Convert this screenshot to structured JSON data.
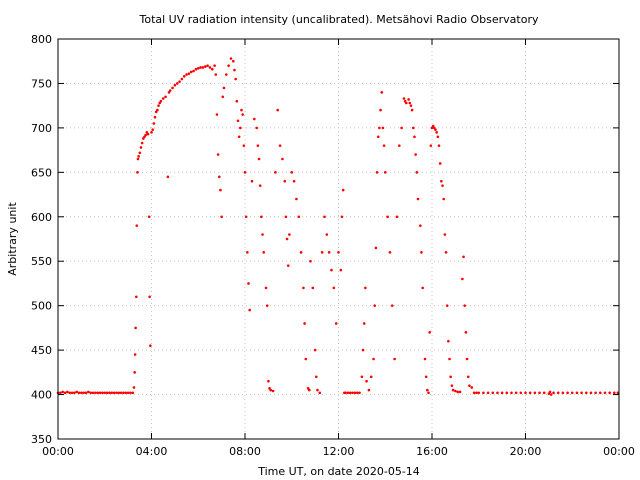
{
  "chart_data": {
    "type": "scatter",
    "title": "Total UV radiation intensity (uncalibrated). Metsähovi Radio Observatory",
    "xlabel": "Time UT, on date 2020-05-14",
    "ylabel": "Arbitrary unit",
    "xlim": [
      0,
      24
    ],
    "ylim": [
      350,
      800
    ],
    "x_ticks": [
      0,
      4,
      8,
      12,
      16,
      20,
      24
    ],
    "x_tick_labels": [
      "00:00",
      "04:00",
      "08:00",
      "12:00",
      "16:00",
      "20:00",
      "00:00"
    ],
    "y_ticks": [
      350,
      400,
      450,
      500,
      550,
      600,
      650,
      700,
      750,
      800
    ],
    "y_tick_labels": [
      "350",
      "400",
      "450",
      "500",
      "550",
      "600",
      "650",
      "700",
      "750",
      "800"
    ],
    "grid": true,
    "series_color": "#ff0000",
    "series": [
      {
        "x_unit": "hours UT",
        "points": [
          [
            0.0,
            402
          ],
          [
            0.1,
            402
          ],
          [
            0.2,
            403
          ],
          [
            0.3,
            402
          ],
          [
            0.4,
            403
          ],
          [
            0.5,
            402
          ],
          [
            0.6,
            402
          ],
          [
            0.7,
            402
          ],
          [
            0.8,
            403
          ],
          [
            0.9,
            402
          ],
          [
            1.0,
            402
          ],
          [
            1.1,
            402
          ],
          [
            1.2,
            402
          ],
          [
            1.3,
            403
          ],
          [
            1.4,
            402
          ],
          [
            1.5,
            402
          ],
          [
            1.6,
            402
          ],
          [
            1.7,
            402
          ],
          [
            1.8,
            402
          ],
          [
            1.9,
            402
          ],
          [
            2.0,
            402
          ],
          [
            2.1,
            402
          ],
          [
            2.2,
            402
          ],
          [
            2.3,
            402
          ],
          [
            2.4,
            402
          ],
          [
            2.5,
            402
          ],
          [
            2.6,
            402
          ],
          [
            2.7,
            402
          ],
          [
            2.8,
            402
          ],
          [
            2.9,
            402
          ],
          [
            3.0,
            402
          ],
          [
            3.1,
            402
          ],
          [
            3.2,
            402
          ],
          [
            3.25,
            408
          ],
          [
            3.28,
            425
          ],
          [
            3.3,
            445
          ],
          [
            3.32,
            475
          ],
          [
            3.35,
            510
          ],
          [
            3.37,
            590
          ],
          [
            3.4,
            650
          ],
          [
            3.42,
            665
          ],
          [
            3.45,
            668
          ],
          [
            3.5,
            672
          ],
          [
            3.55,
            678
          ],
          [
            3.6,
            683
          ],
          [
            3.65,
            688
          ],
          [
            3.7,
            690
          ],
          [
            3.75,
            692
          ],
          [
            3.8,
            695
          ],
          [
            3.85,
            693
          ],
          [
            3.9,
            600
          ],
          [
            3.92,
            510
          ],
          [
            3.95,
            455
          ],
          [
            4.0,
            695
          ],
          [
            4.05,
            698
          ],
          [
            4.1,
            705
          ],
          [
            4.15,
            712
          ],
          [
            4.2,
            718
          ],
          [
            4.25,
            720
          ],
          [
            4.3,
            725
          ],
          [
            4.35,
            728
          ],
          [
            4.4,
            730
          ],
          [
            4.5,
            733
          ],
          [
            4.6,
            735
          ],
          [
            4.7,
            645
          ],
          [
            4.75,
            740
          ],
          [
            4.8,
            742
          ],
          [
            4.9,
            745
          ],
          [
            5.0,
            748
          ],
          [
            5.1,
            750
          ],
          [
            5.2,
            752
          ],
          [
            5.3,
            755
          ],
          [
            5.4,
            758
          ],
          [
            5.5,
            760
          ],
          [
            5.6,
            761
          ],
          [
            5.7,
            763
          ],
          [
            5.8,
            764
          ],
          [
            5.9,
            766
          ],
          [
            6.0,
            767
          ],
          [
            6.1,
            768
          ],
          [
            6.2,
            768
          ],
          [
            6.3,
            769
          ],
          [
            6.4,
            770
          ],
          [
            6.5,
            768
          ],
          [
            6.6,
            766
          ],
          [
            6.7,
            770
          ],
          [
            6.75,
            760
          ],
          [
            6.8,
            715
          ],
          [
            6.85,
            670
          ],
          [
            6.9,
            645
          ],
          [
            6.95,
            630
          ],
          [
            7.0,
            600
          ],
          [
            7.05,
            735
          ],
          [
            7.1,
            745
          ],
          [
            7.2,
            760
          ],
          [
            7.3,
            770
          ],
          [
            7.4,
            778
          ],
          [
            7.5,
            775
          ],
          [
            7.55,
            765
          ],
          [
            7.6,
            755
          ],
          [
            7.65,
            730
          ],
          [
            7.7,
            708
          ],
          [
            7.75,
            690
          ],
          [
            7.8,
            700
          ],
          [
            7.85,
            720
          ],
          [
            7.9,
            715
          ],
          [
            7.95,
            680
          ],
          [
            8.0,
            650
          ],
          [
            8.05,
            600
          ],
          [
            8.1,
            560
          ],
          [
            8.15,
            525
          ],
          [
            8.2,
            495
          ],
          [
            8.3,
            640
          ],
          [
            8.4,
            710
          ],
          [
            8.5,
            700
          ],
          [
            8.55,
            680
          ],
          [
            8.6,
            665
          ],
          [
            8.65,
            635
          ],
          [
            8.7,
            600
          ],
          [
            8.75,
            580
          ],
          [
            8.8,
            560
          ],
          [
            8.9,
            520
          ],
          [
            8.95,
            500
          ],
          [
            9.0,
            415
          ],
          [
            9.05,
            407
          ],
          [
            9.1,
            405
          ],
          [
            9.2,
            404
          ],
          [
            9.3,
            650
          ],
          [
            9.4,
            720
          ],
          [
            9.5,
            680
          ],
          [
            9.6,
            665
          ],
          [
            9.7,
            640
          ],
          [
            9.75,
            600
          ],
          [
            9.8,
            575
          ],
          [
            9.85,
            545
          ],
          [
            9.9,
            580
          ],
          [
            10.0,
            650
          ],
          [
            10.1,
            640
          ],
          [
            10.2,
            620
          ],
          [
            10.3,
            600
          ],
          [
            10.4,
            560
          ],
          [
            10.5,
            520
          ],
          [
            10.55,
            480
          ],
          [
            10.6,
            440
          ],
          [
            10.7,
            407
          ],
          [
            10.75,
            405
          ],
          [
            10.8,
            550
          ],
          [
            10.9,
            520
          ],
          [
            11.0,
            450
          ],
          [
            11.05,
            420
          ],
          [
            11.1,
            405
          ],
          [
            11.2,
            402
          ],
          [
            11.3,
            560
          ],
          [
            11.4,
            600
          ],
          [
            11.5,
            580
          ],
          [
            11.6,
            560
          ],
          [
            11.7,
            540
          ],
          [
            11.8,
            520
          ],
          [
            11.9,
            480
          ],
          [
            12.0,
            560
          ],
          [
            12.1,
            540
          ],
          [
            12.15,
            600
          ],
          [
            12.2,
            630
          ],
          [
            12.25,
            402
          ],
          [
            12.3,
            402
          ],
          [
            12.4,
            402
          ],
          [
            12.5,
            402
          ],
          [
            12.6,
            402
          ],
          [
            12.7,
            402
          ],
          [
            12.8,
            402
          ],
          [
            12.9,
            402
          ],
          [
            13.0,
            420
          ],
          [
            13.05,
            450
          ],
          [
            13.1,
            480
          ],
          [
            13.15,
            520
          ],
          [
            13.2,
            415
          ],
          [
            13.3,
            405
          ],
          [
            13.4,
            420
          ],
          [
            13.5,
            440
          ],
          [
            13.55,
            500
          ],
          [
            13.6,
            565
          ],
          [
            13.65,
            650
          ],
          [
            13.7,
            690
          ],
          [
            13.75,
            700
          ],
          [
            13.8,
            720
          ],
          [
            13.85,
            740
          ],
          [
            13.9,
            700
          ],
          [
            13.95,
            680
          ],
          [
            14.0,
            650
          ],
          [
            14.1,
            600
          ],
          [
            14.2,
            560
          ],
          [
            14.3,
            500
          ],
          [
            14.4,
            440
          ],
          [
            14.5,
            600
          ],
          [
            14.6,
            680
          ],
          [
            14.7,
            700
          ],
          [
            14.8,
            733
          ],
          [
            14.85,
            730
          ],
          [
            14.9,
            728
          ],
          [
            15.0,
            732
          ],
          [
            15.05,
            728
          ],
          [
            15.1,
            725
          ],
          [
            15.15,
            720
          ],
          [
            15.2,
            700
          ],
          [
            15.25,
            690
          ],
          [
            15.3,
            670
          ],
          [
            15.35,
            650
          ],
          [
            15.4,
            620
          ],
          [
            15.5,
            590
          ],
          [
            15.55,
            560
          ],
          [
            15.6,
            520
          ],
          [
            15.7,
            440
          ],
          [
            15.75,
            420
          ],
          [
            15.8,
            405
          ],
          [
            15.85,
            402
          ],
          [
            15.9,
            470
          ],
          [
            15.95,
            680
          ],
          [
            16.0,
            700
          ],
          [
            16.05,
            702
          ],
          [
            16.1,
            700
          ],
          [
            16.15,
            698
          ],
          [
            16.2,
            695
          ],
          [
            16.25,
            690
          ],
          [
            16.3,
            680
          ],
          [
            16.35,
            660
          ],
          [
            16.4,
            640
          ],
          [
            16.45,
            635
          ],
          [
            16.5,
            620
          ],
          [
            16.55,
            580
          ],
          [
            16.6,
            560
          ],
          [
            16.65,
            500
          ],
          [
            16.7,
            460
          ],
          [
            16.75,
            440
          ],
          [
            16.8,
            420
          ],
          [
            16.85,
            410
          ],
          [
            16.9,
            405
          ],
          [
            17.0,
            404
          ],
          [
            17.1,
            403
          ],
          [
            17.2,
            403
          ],
          [
            17.3,
            530
          ],
          [
            17.35,
            555
          ],
          [
            17.4,
            500
          ],
          [
            17.45,
            470
          ],
          [
            17.5,
            440
          ],
          [
            17.55,
            420
          ],
          [
            17.6,
            410
          ],
          [
            17.7,
            408
          ],
          [
            17.8,
            402
          ],
          [
            17.9,
            402
          ],
          [
            18.0,
            402
          ],
          [
            18.2,
            402
          ],
          [
            18.4,
            402
          ],
          [
            18.6,
            402
          ],
          [
            18.8,
            402
          ],
          [
            19.0,
            402
          ],
          [
            19.2,
            402
          ],
          [
            19.4,
            402
          ],
          [
            19.6,
            402
          ],
          [
            19.8,
            402
          ],
          [
            20.0,
            402
          ],
          [
            20.2,
            402
          ],
          [
            20.4,
            402
          ],
          [
            20.6,
            402
          ],
          [
            20.8,
            402
          ],
          [
            21.0,
            401
          ],
          [
            21.05,
            403
          ],
          [
            21.1,
            400
          ],
          [
            21.2,
            402
          ],
          [
            21.4,
            402
          ],
          [
            21.6,
            402
          ],
          [
            21.8,
            402
          ],
          [
            22.0,
            402
          ],
          [
            22.2,
            402
          ],
          [
            22.4,
            402
          ],
          [
            22.6,
            402
          ],
          [
            22.8,
            402
          ],
          [
            23.0,
            402
          ],
          [
            23.2,
            402
          ],
          [
            23.4,
            402
          ],
          [
            23.6,
            402
          ],
          [
            23.8,
            402
          ],
          [
            23.95,
            402
          ]
        ]
      }
    ]
  }
}
